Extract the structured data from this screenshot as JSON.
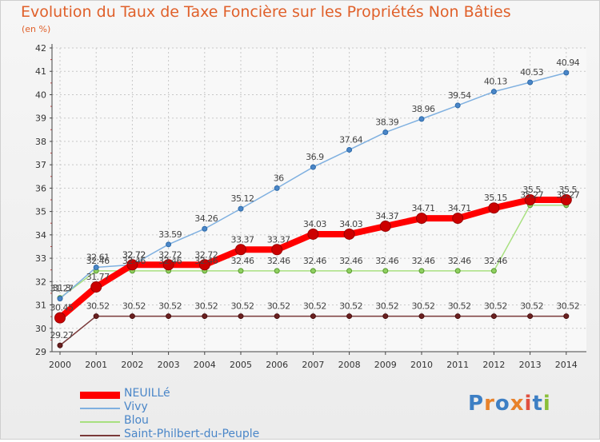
{
  "header": {
    "title": "Evolution du Taux de Taxe Foncière sur les Propriétés Non Bâties",
    "unit": "(en %)"
  },
  "logo": {
    "text": "Proxiti",
    "colors": [
      "#3d7fc4",
      "#e8822a",
      "#3d7fc4",
      "#e8822a",
      "#e05040",
      "#3d7fc4",
      "#8abf3a"
    ]
  },
  "chart_data": {
    "type": "line",
    "title": "Evolution du Taux de Taxe Foncière sur les Propriétés Non Bâties",
    "ylabel": "(en %)",
    "xlabel": "",
    "ylim": [
      29,
      42
    ],
    "yticks": [
      29,
      30,
      31,
      32,
      33,
      34,
      35,
      36,
      37,
      38,
      39,
      40,
      41,
      42
    ],
    "x": [
      "2000",
      "2001",
      "2002",
      "2003",
      "2004",
      "2005",
      "2006",
      "2007",
      "2008",
      "2009",
      "2010",
      "2011",
      "2012",
      "2013",
      "2014"
    ],
    "grid": true,
    "legend": "bottom-left",
    "series": [
      {
        "name": "NEUILLé",
        "color": "#ff0000",
        "values": [
          30.45,
          31.77,
          32.72,
          32.72,
          32.72,
          33.37,
          33.37,
          34.03,
          34.03,
          34.37,
          34.71,
          34.71,
          35.15,
          35.5,
          35.5
        ],
        "labels": [
          "30.45",
          "31.77",
          "32.72",
          "32.72",
          "32.72",
          "33.37",
          "33.37",
          "34.03",
          "34.03",
          "34.37",
          "34.71",
          "34.71",
          "35.15",
          "35.5",
          "35.5"
        ]
      },
      {
        "name": "Vivy",
        "color": "#7fb0e0",
        "values": [
          31.27,
          32.61,
          32.72,
          33.59,
          34.26,
          35.12,
          36,
          36.9,
          37.64,
          38.39,
          38.96,
          39.54,
          40.13,
          40.53,
          40.94
        ],
        "labels": [
          "31.27",
          "32.61",
          "32.72",
          "33.59",
          "34.26",
          "35.12",
          "36",
          "36.9",
          "37.64",
          "38.39",
          "38.96",
          "39.54",
          "40.13",
          "40.53",
          "40.94"
        ]
      },
      {
        "name": "Blou",
        "color": "#a8e080",
        "values": [
          31.3,
          32.46,
          32.46,
          32.46,
          32.46,
          32.46,
          32.46,
          32.46,
          32.46,
          32.46,
          32.46,
          32.46,
          32.46,
          35.27,
          35.27
        ],
        "labels": [
          "31.3",
          "32.46",
          "32.46",
          "32.46",
          "32.46",
          "32.46",
          "32.46",
          "32.46",
          "32.46",
          "32.46",
          "32.46",
          "32.46",
          "32.46",
          "35.27",
          "35.27"
        ]
      },
      {
        "name": "Saint-Philbert-du-Peuple",
        "color": "#7a3a3a",
        "values": [
          29.27,
          30.52,
          30.52,
          30.52,
          30.52,
          30.52,
          30.52,
          30.52,
          30.52,
          30.52,
          30.52,
          30.52,
          30.52,
          30.52,
          30.52
        ],
        "labels": [
          "29.27",
          "30.52",
          "30.52",
          "30.52",
          "30.52",
          "30.52",
          "30.52",
          "30.52",
          "30.52",
          "30.52",
          "30.52",
          "30.52",
          "30.52",
          "30.52",
          "30.52"
        ]
      }
    ]
  }
}
